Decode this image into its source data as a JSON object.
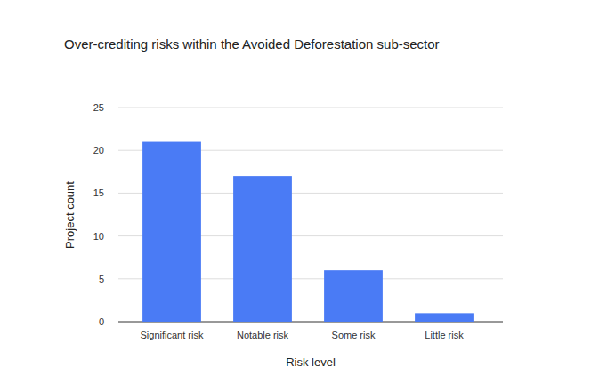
{
  "chart_data": {
    "type": "bar",
    "title": "Over-crediting risks within the Avoided Deforestation sub-sector",
    "x_label": "Risk level",
    "y_label": "Project count",
    "categories": [
      "Significant risk",
      "Notable risk",
      "Some risk",
      "Little risk"
    ],
    "values": [
      21,
      17,
      6,
      1
    ],
    "color": "#4a7bf5",
    "ylim": [
      0,
      25
    ],
    "yticks": [
      0,
      5,
      10,
      15,
      20,
      25
    ],
    "grid": true
  }
}
